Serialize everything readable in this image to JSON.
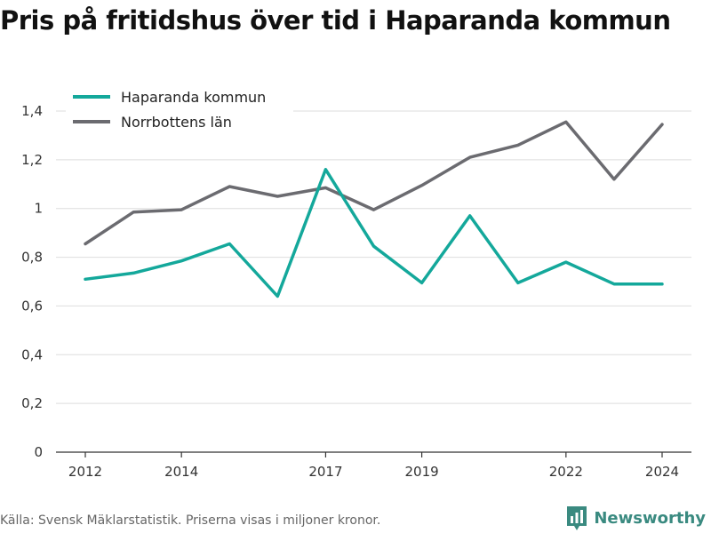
{
  "title": "Pris på fritidshus över tid i Haparanda kommun",
  "source": "Källa: Svensk Mäklarstatistik. Priserna visas i miljoner kronor.",
  "brand": {
    "name": "Newsworthy",
    "icon": "bar-chart-logo-icon",
    "color": "#3a8a80"
  },
  "chart_data": {
    "type": "line",
    "title": "Pris på fritidshus över tid i Haparanda kommun",
    "xlabel": "",
    "ylabel": "",
    "x": [
      2012,
      2013,
      2014,
      2015,
      2016,
      2017,
      2018,
      2019,
      2020,
      2021,
      2022,
      2023,
      2024
    ],
    "xticks": [
      2012,
      2014,
      2017,
      2019,
      2022,
      2024
    ],
    "xtick_labels": [
      "2012",
      "2014",
      "2017",
      "2019",
      "2022",
      "2024"
    ],
    "ylim": [
      0,
      1.4
    ],
    "yticks": [
      0,
      0.2,
      0.4,
      0.6,
      0.8,
      1,
      1.2,
      1.4
    ],
    "ytick_labels": [
      "0",
      "0,2",
      "0,4",
      "0,6",
      "0,8",
      "1",
      "1,2",
      "1,4"
    ],
    "grid": true,
    "legend_position": "top-left",
    "series": [
      {
        "name": "Haparanda kommun",
        "color": "#14a89b",
        "values": [
          0.71,
          0.735,
          0.785,
          0.855,
          0.64,
          1.16,
          0.845,
          0.695,
          0.97,
          0.695,
          0.78,
          0.69,
          0.69
        ]
      },
      {
        "name": "Norrbottens län",
        "color": "#6b6b70",
        "values": [
          0.855,
          0.985,
          0.995,
          1.09,
          1.05,
          1.085,
          0.995,
          1.095,
          1.21,
          1.26,
          1.355,
          1.12,
          1.345
        ]
      }
    ]
  }
}
